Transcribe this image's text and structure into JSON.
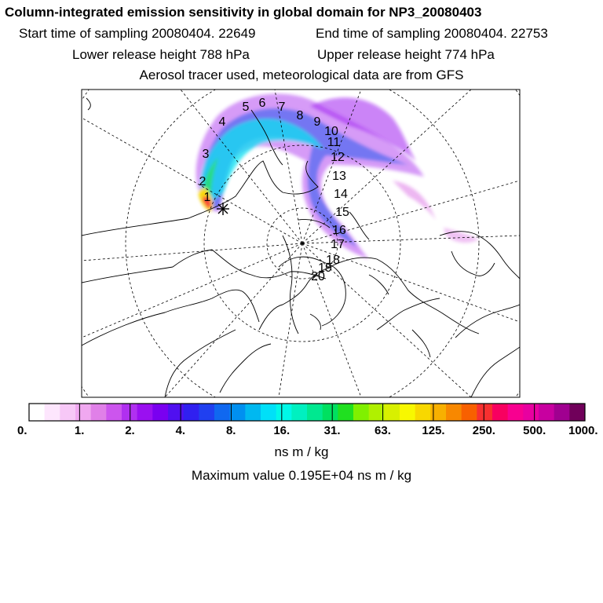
{
  "header": {
    "title": "Column-integrated emission sensitivity in global domain for NP3_20080403",
    "start_time": "Start time of sampling 20080404. 22649",
    "end_time": "End time of sampling 20080404. 22753",
    "lower_height": "Lower release height  788 hPa",
    "upper_height": "Upper release height  774 hPa",
    "tracer_note": "Aerosol tracer used, meteorological data are from GFS"
  },
  "map": {
    "projection": "north-polar-stereographic",
    "release_marker": "star",
    "day_labels": [
      "1",
      "2",
      "3",
      "4",
      "5",
      "6",
      "7",
      "8",
      "9",
      "10",
      "11",
      "12",
      "13",
      "14",
      "15",
      "16",
      "17",
      "18",
      "19",
      "20"
    ]
  },
  "colorbar": {
    "tick_labels": [
      "0.",
      "1.",
      "2.",
      "4.",
      "8.",
      "16.",
      "31.",
      "63.",
      "125.",
      "250.",
      "500.",
      "1000."
    ],
    "colors": [
      "#ffffff",
      "#fde6fd",
      "#f7c8f7",
      "#f0a8f0",
      "#e080e8",
      "#cc55ee",
      "#b030f0",
      "#9a10f0",
      "#7a00f0",
      "#5010f0",
      "#3020f0",
      "#2040f0",
      "#1068f0",
      "#0090f0",
      "#00b8f0",
      "#00e0f8",
      "#00f8e8",
      "#00f0c0",
      "#00e890",
      "#00e060",
      "#20e020",
      "#80f000",
      "#b0f000",
      "#d8f000",
      "#f8f800",
      "#f8d800",
      "#f8b000",
      "#f88800",
      "#f86000",
      "#f83030",
      "#f80060",
      "#f80090",
      "#e800a0",
      "#c800a0",
      "#a00090",
      "#70005a"
    ],
    "unit": "ns m / kg",
    "max_value": "Maximum value  0.195E+04 ns m / kg"
  }
}
